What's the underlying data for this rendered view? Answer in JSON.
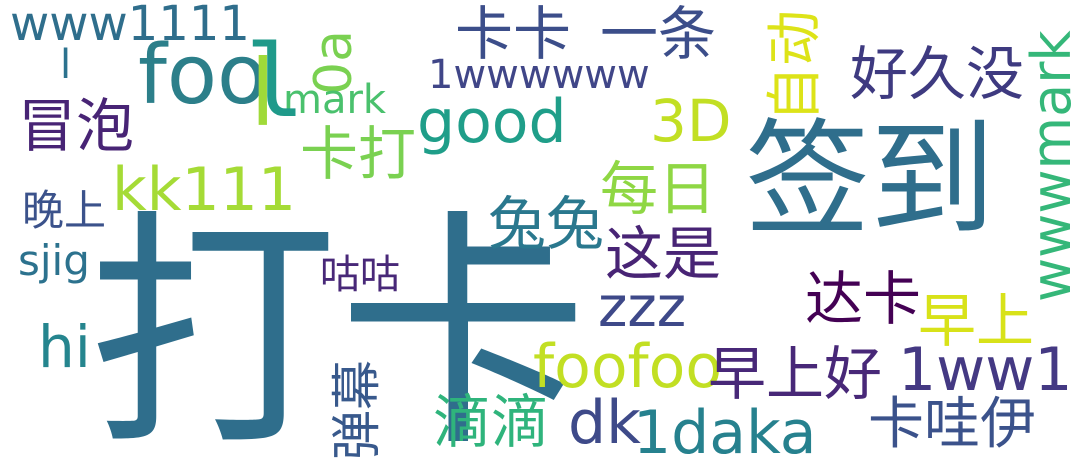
{
  "words": [
    {
      "text": "打卡",
      "color": "#2f6e8c"
    },
    {
      "text": "签到",
      "color": "#2f6e8c"
    },
    {
      "text": "foo",
      "color": "#2c7f8a"
    },
    {
      "text": "卡卡",
      "color": "#3c4e8a"
    },
    {
      "text": "一条",
      "color": "#3c4e8a"
    },
    {
      "text": "www1111",
      "color": "#2f6e8c"
    },
    {
      "text": "0a",
      "color": "#7ad151"
    },
    {
      "text": "1wwwwww",
      "color": "#404688"
    },
    {
      "text": "好久没",
      "color": "#3e3a80"
    },
    {
      "text": "wwwmark",
      "color": "#35b779"
    },
    {
      "text": "自动",
      "color": "#dde318"
    },
    {
      "text": "mark",
      "color": "#4ac16d"
    },
    {
      "text": "冒泡",
      "color": "#482475"
    },
    {
      "text": "good",
      "color": "#1f9e89"
    },
    {
      "text": "3D",
      "color": "#c2df23"
    },
    {
      "text": "卡打",
      "color": "#7ad151"
    },
    {
      "text": "每日",
      "color": "#8fd744"
    },
    {
      "text": "kk111",
      "color": "#a5db36"
    },
    {
      "text": "兔兔",
      "color": "#2a788e"
    },
    {
      "text": "这是",
      "color": "#482475"
    },
    {
      "text": "晚上",
      "color": "#3b528b"
    },
    {
      "text": "sjig",
      "color": "#2c728e"
    },
    {
      "text": "咕咕",
      "color": "#482878"
    },
    {
      "text": "达卡",
      "color": "#440154"
    },
    {
      "text": "zzz",
      "color": "#3e4989"
    },
    {
      "text": "早上",
      "color": "#d8e219"
    },
    {
      "text": "hi",
      "color": "#25858e"
    },
    {
      "text": "foofoo",
      "color": "#c2df23"
    },
    {
      "text": "早上好",
      "color": "#482878"
    },
    {
      "text": "1ww1",
      "color": "#443983"
    },
    {
      "text": "弹幕",
      "color": "#38598c"
    },
    {
      "text": "滴滴",
      "color": "#2fb47c"
    },
    {
      "text": "dk",
      "color": "#3e4a89"
    },
    {
      "text": "1daka",
      "color": "#26818e"
    },
    {
      "text": "卡哇伊",
      "color": "#3b528b"
    },
    {
      "text": "l",
      "color": "#1f9a8a"
    },
    {
      "text": "l",
      "color": "#a0da39"
    },
    {
      "text": "l",
      "color": "#2c728e"
    }
  ]
}
